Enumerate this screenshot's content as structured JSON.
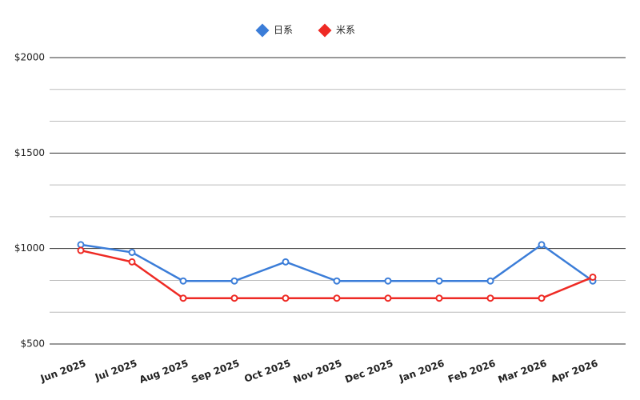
{
  "chart_data": {
    "type": "line",
    "categories": [
      "Jun 2025",
      "Jul 2025",
      "Aug 2025",
      "Sep 2025",
      "Oct 2025",
      "Nov 2025",
      "Dec 2025",
      "Jan 2026",
      "Feb 2026",
      "Mar 2026",
      "Apr 2026"
    ],
    "series": [
      {
        "name": "日系",
        "color": "#3b7dd8",
        "values": [
          1020,
          980,
          830,
          830,
          930,
          830,
          830,
          830,
          830,
          1020,
          830
        ]
      },
      {
        "name": "米系",
        "color": "#ee2a24",
        "values": [
          990,
          930,
          740,
          740,
          740,
          740,
          740,
          740,
          740,
          740,
          850
        ]
      }
    ],
    "ylim": [
      500,
      2000
    ],
    "yticks": [
      {
        "value": 500,
        "label": "$500"
      },
      {
        "value": 1000,
        "label": "$1000"
      },
      {
        "value": 1500,
        "label": "$1500"
      },
      {
        "value": 2000,
        "label": "$2000"
      }
    ],
    "minor_yticks": [
      666.67,
      833.33,
      1166.67,
      1333.33,
      1666.67,
      1833.33
    ],
    "grid": true,
    "legend": "top"
  }
}
